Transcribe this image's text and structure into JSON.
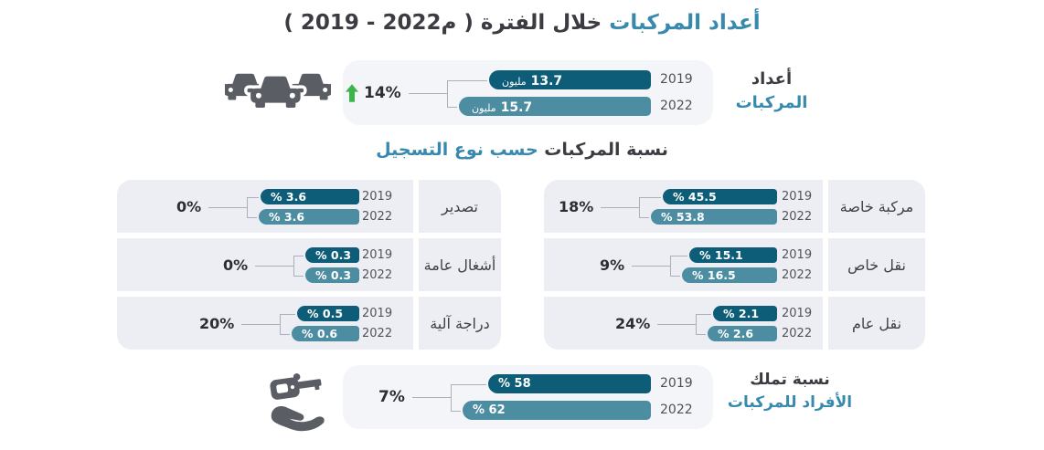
{
  "colors": {
    "bar_2019": "#0E5D78",
    "bar_2022": "#4C8DA2",
    "accent_teal_text": "#3789AD",
    "text_dark": "#3B3B41",
    "panel_bg": "#F3F5F9",
    "cell_bg": "#EDEEF3",
    "connector_line": "#ABB0BA",
    "trend_green": "#3BB54A",
    "icon_gray": "#5A5D63"
  },
  "title": {
    "highlight": "أعداد المركبات",
    "rest": "خلال الفترة",
    "paren": "( 2019 - 2022م )"
  },
  "counts": {
    "heading_line1": "أعداد",
    "heading_line2": "المركبات",
    "change": "14%",
    "bars": [
      {
        "year": "2019",
        "value": "13.7",
        "unit": "مليون"
      },
      {
        "year": "2022",
        "value": "15.7",
        "unit": "مليون"
      }
    ]
  },
  "registration": {
    "title_dark": "نسبة المركبات",
    "title_teal": "حسب نوع التسجيل",
    "right_column": [
      {
        "category": "مركبة خاصة",
        "change": "18%",
        "bars": [
          {
            "year": "2019",
            "label": "% 45.5"
          },
          {
            "year": "2022",
            "label": "% 53.8"
          }
        ]
      },
      {
        "category": "نقل خاص",
        "change": "9%",
        "bars": [
          {
            "year": "2019",
            "label": "% 15.1"
          },
          {
            "year": "2022",
            "label": "% 16.5"
          }
        ]
      },
      {
        "category": "نقل عام",
        "change": "24%",
        "bars": [
          {
            "year": "2019",
            "label": "% 2.1"
          },
          {
            "year": "2022",
            "label": "% 2.6"
          }
        ]
      }
    ],
    "left_column": [
      {
        "category": "تصدير",
        "change": "0%",
        "bars": [
          {
            "year": "2019",
            "label": "% 3.6"
          },
          {
            "year": "2022",
            "label": "% 3.6"
          }
        ]
      },
      {
        "category": "أشغال عامة",
        "change": "0%",
        "bars": [
          {
            "year": "2019",
            "label": "% 0.3"
          },
          {
            "year": "2022",
            "label": "% 0.3"
          }
        ]
      },
      {
        "category": "دراجة آلية",
        "change": "20%",
        "bars": [
          {
            "year": "2019",
            "label": "% 0.5"
          },
          {
            "year": "2022",
            "label": "% 0.6"
          }
        ]
      }
    ]
  },
  "ownership": {
    "heading_line1": "نسبة تملك",
    "heading_line2": "الأفراد للمركبات",
    "change": "7%",
    "bars": [
      {
        "year": "2019",
        "label": "% 58"
      },
      {
        "year": "2022",
        "label": "% 62"
      }
    ]
  },
  "chart_data": [
    {
      "type": "bar",
      "title": "أعداد المركبات خلال الفترة ( 2019 - 2022م )",
      "categories": [
        "2019",
        "2022"
      ],
      "values": [
        13.7,
        15.7
      ],
      "unit": "مليون",
      "change_pct": 14,
      "orientation": "horizontal-rtl",
      "colors": {
        "2019": "#0E5D78",
        "2022": "#4C8DA2"
      }
    },
    {
      "type": "bar",
      "title": "نسبة المركبات حسب نوع التسجيل",
      "categories": [
        "مركبة خاصة",
        "نقل خاص",
        "نقل عام",
        "تصدير",
        "أشغال عامة",
        "دراجة آلية"
      ],
      "series": [
        {
          "name": "2019",
          "values": [
            45.5,
            15.1,
            2.1,
            3.6,
            0.3,
            0.5
          ]
        },
        {
          "name": "2022",
          "values": [
            53.8,
            16.5,
            2.6,
            3.6,
            0.3,
            0.6
          ]
        }
      ],
      "change_pct": [
        18,
        9,
        24,
        0,
        0,
        20
      ],
      "unit": "%",
      "orientation": "horizontal-rtl",
      "legend": [
        "2019",
        "2022"
      ]
    },
    {
      "type": "bar",
      "title": "نسبة تملك الأفراد للمركبات",
      "categories": [
        "2019",
        "2022"
      ],
      "values": [
        58,
        62
      ],
      "unit": "%",
      "change_pct": 7,
      "orientation": "horizontal-rtl"
    }
  ]
}
